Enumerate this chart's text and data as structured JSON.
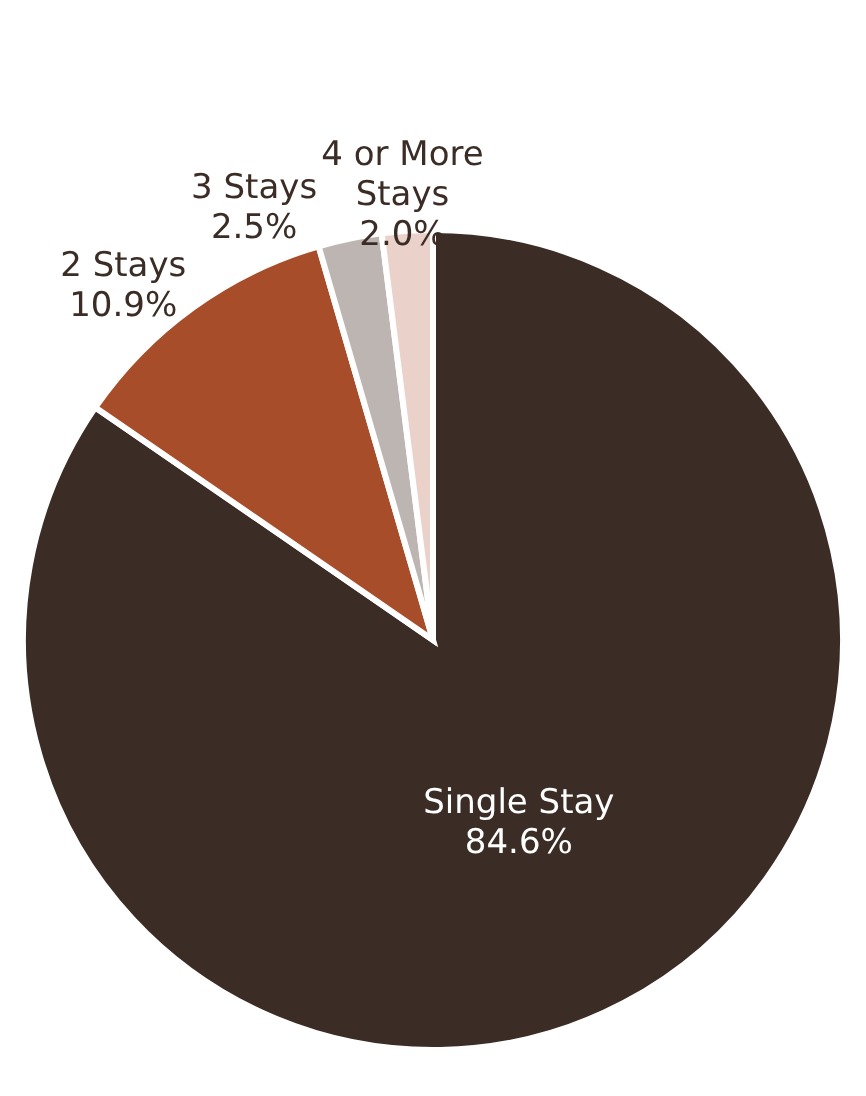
{
  "chart_data": {
    "type": "pie",
    "categories": [
      "Single Stay",
      "2 Stays",
      "3 Stays",
      "4 or More Stays"
    ],
    "values": [
      84.6,
      10.9,
      2.5,
      2.0
    ],
    "colors": [
      "#3b2d26",
      "#a84d2a",
      "#bcb5b2",
      "#ead2cb"
    ],
    "value_labels": [
      "84.6%",
      "10.9%",
      "2.5%",
      "2.0%"
    ]
  }
}
